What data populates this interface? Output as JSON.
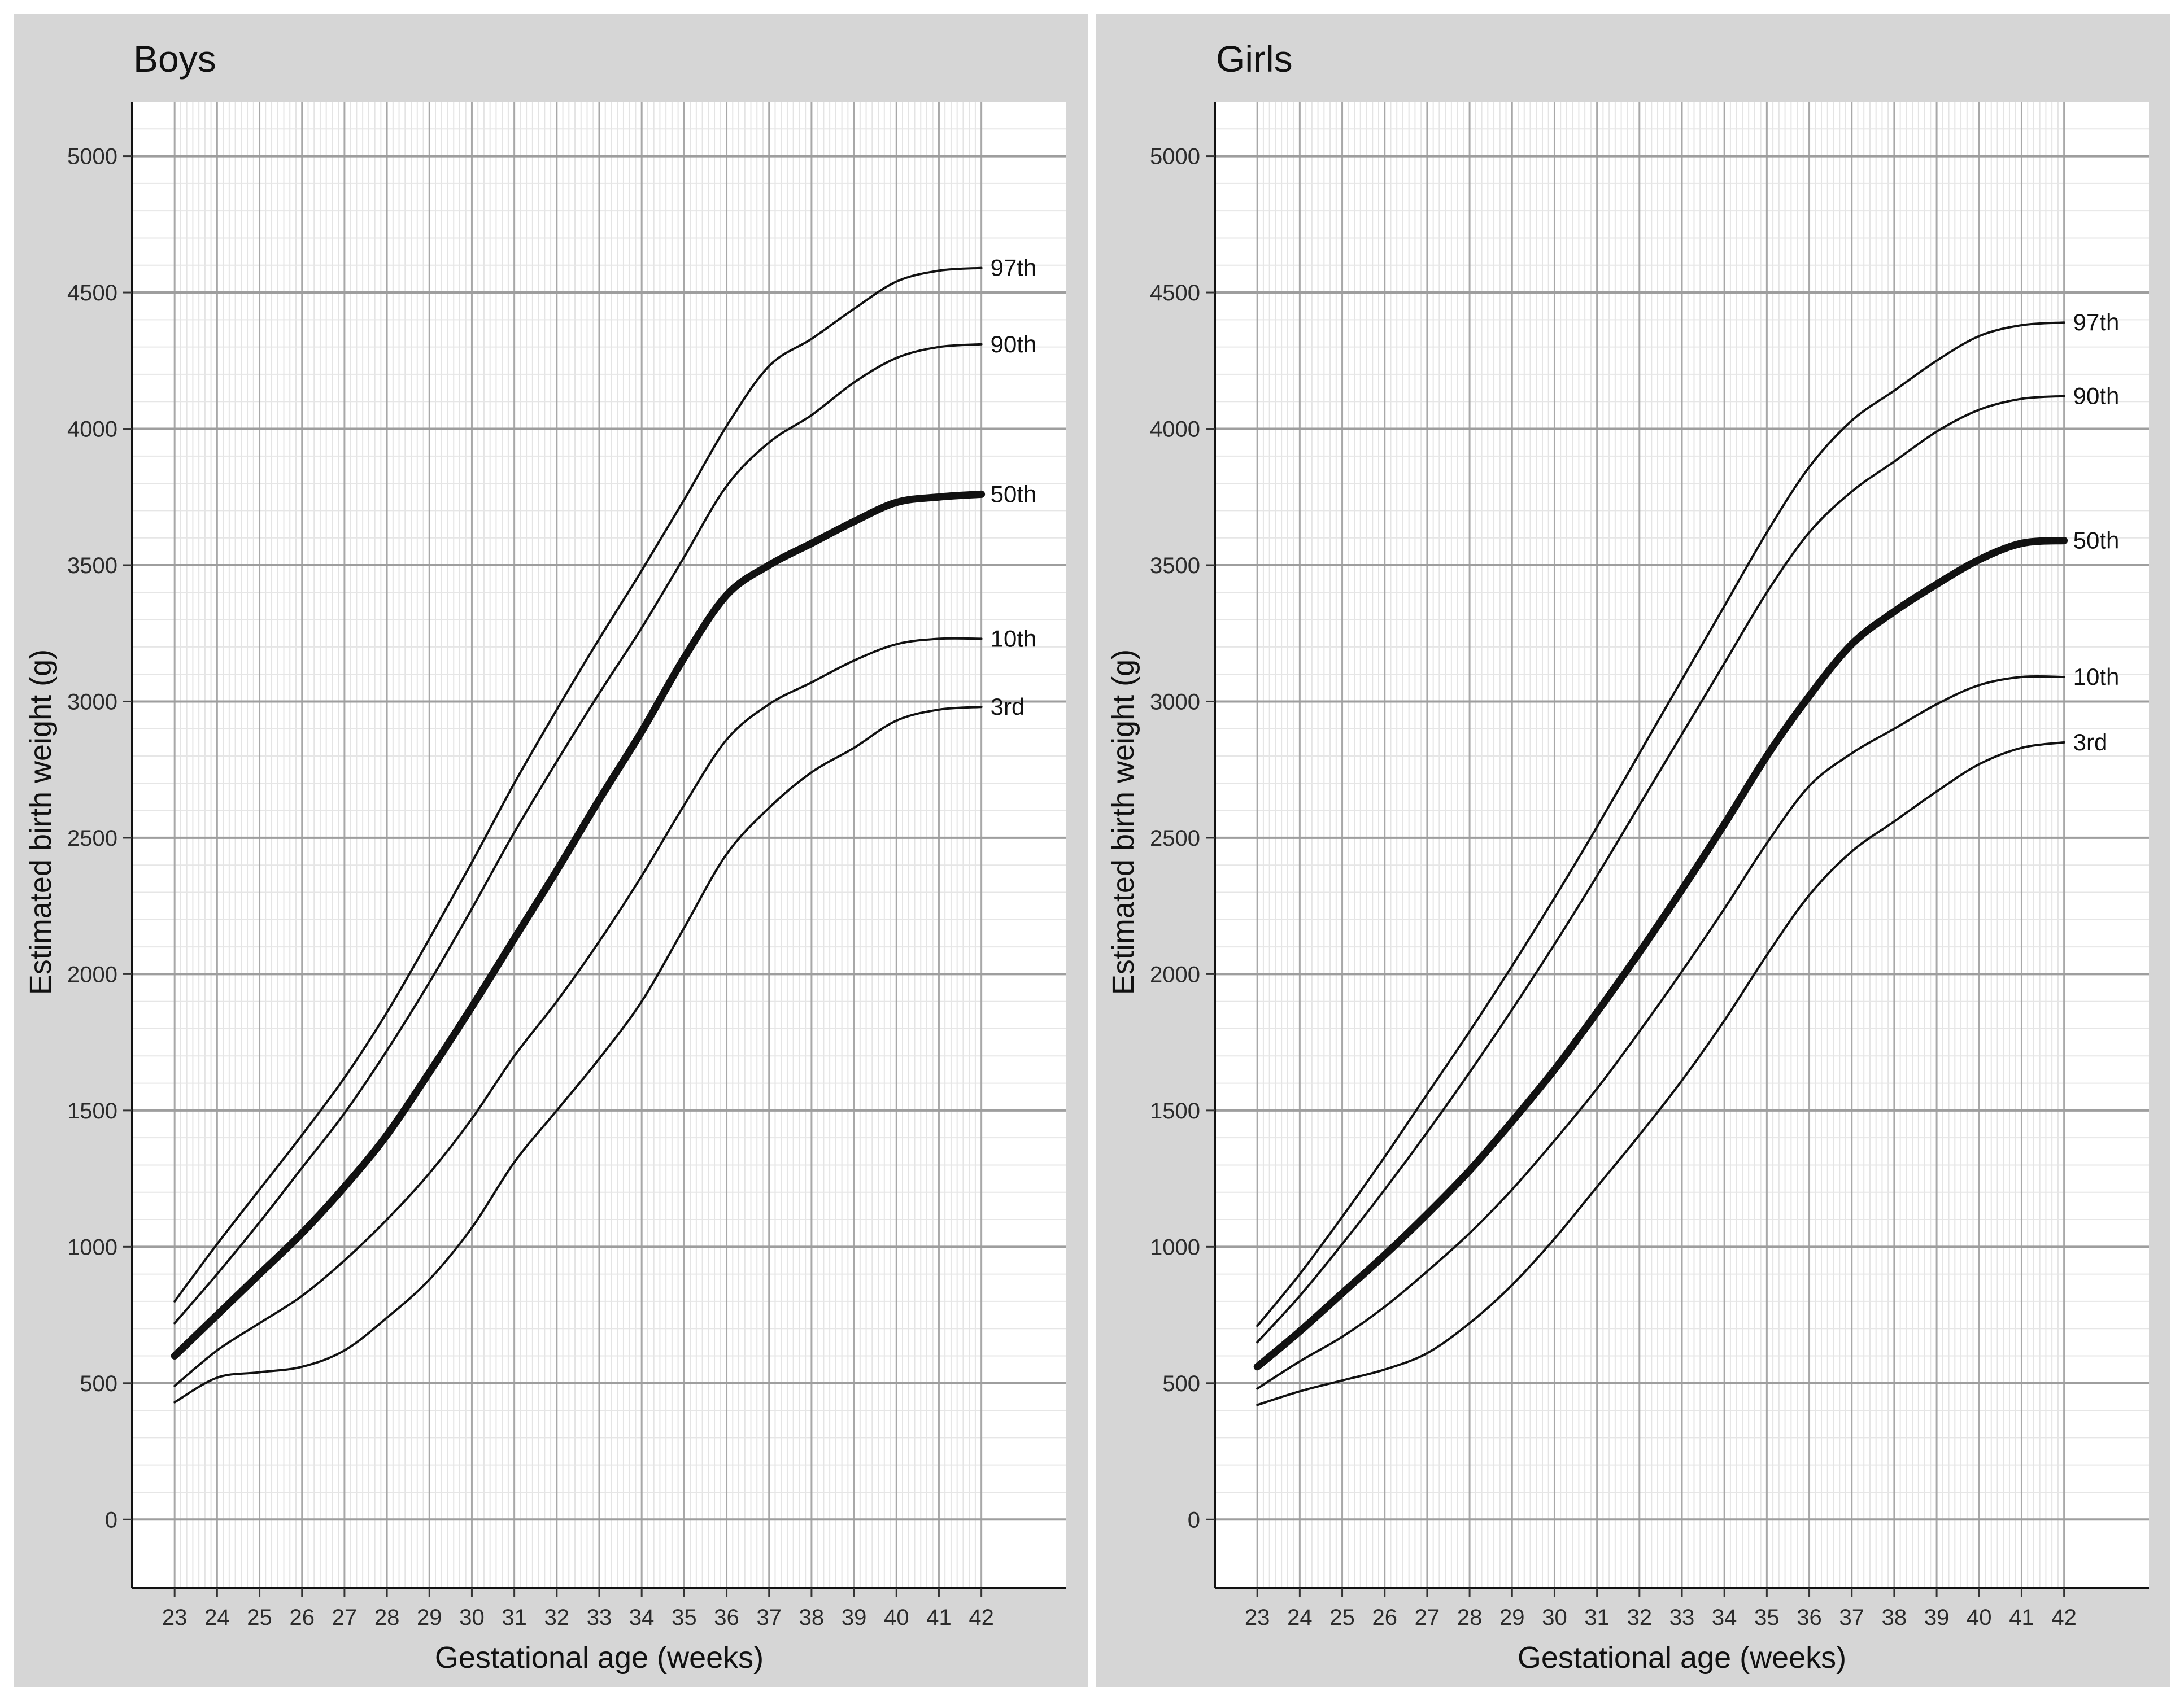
{
  "chart_data": [
    {
      "type": "line",
      "title": "Boys",
      "xlabel": "Gestational age (weeks)",
      "ylabel": "Estimated birth weight (g)",
      "x": [
        23,
        24,
        25,
        26,
        27,
        28,
        29,
        30,
        31,
        32,
        33,
        34,
        35,
        36,
        37,
        38,
        39,
        40,
        41,
        42
      ],
      "xlim": [
        22,
        44
      ],
      "ylim": [
        -250,
        5200
      ],
      "yticks": [
        0,
        500,
        1000,
        1500,
        2000,
        2500,
        3000,
        3500,
        4000,
        4500,
        5000
      ],
      "xticks": [
        23,
        24,
        25,
        26,
        27,
        28,
        29,
        30,
        31,
        32,
        33,
        34,
        35,
        36,
        37,
        38,
        39,
        40,
        41,
        42
      ],
      "grid": true,
      "legend": "none",
      "series": [
        {
          "name": "97th",
          "emphasis": false,
          "values": [
            800,
            1010,
            1210,
            1410,
            1620,
            1860,
            2130,
            2410,
            2700,
            2970,
            3230,
            3480,
            3740,
            4010,
            4230,
            4330,
            4440,
            4540,
            4580,
            4590
          ]
        },
        {
          "name": "90th",
          "emphasis": false,
          "values": [
            720,
            900,
            1090,
            1290,
            1490,
            1720,
            1970,
            2240,
            2520,
            2780,
            3030,
            3270,
            3530,
            3790,
            3950,
            4050,
            4170,
            4260,
            4300,
            4310
          ]
        },
        {
          "name": "50th",
          "emphasis": true,
          "values": [
            600,
            750,
            900,
            1050,
            1220,
            1410,
            1640,
            1880,
            2130,
            2380,
            2640,
            2890,
            3160,
            3390,
            3500,
            3580,
            3660,
            3730,
            3750,
            3760
          ]
        },
        {
          "name": "10th",
          "emphasis": false,
          "values": [
            490,
            620,
            720,
            820,
            950,
            1100,
            1270,
            1470,
            1700,
            1900,
            2120,
            2360,
            2620,
            2860,
            2990,
            3070,
            3150,
            3210,
            3230,
            3230
          ]
        },
        {
          "name": "3rd",
          "emphasis": false,
          "values": [
            430,
            520,
            540,
            560,
            620,
            740,
            880,
            1070,
            1310,
            1500,
            1690,
            1900,
            2170,
            2440,
            2610,
            2740,
            2830,
            2930,
            2970,
            2980
          ]
        }
      ]
    },
    {
      "type": "line",
      "title": "Girls",
      "xlabel": "Gestational age (weeks)",
      "ylabel": "Estimated birth weight (g)",
      "x": [
        23,
        24,
        25,
        26,
        27,
        28,
        29,
        30,
        31,
        32,
        33,
        34,
        35,
        36,
        37,
        38,
        39,
        40,
        41,
        42
      ],
      "xlim": [
        22,
        44
      ],
      "ylim": [
        -250,
        5200
      ],
      "yticks": [
        0,
        500,
        1000,
        1500,
        2000,
        2500,
        3000,
        3500,
        4000,
        4500,
        5000
      ],
      "xticks": [
        23,
        24,
        25,
        26,
        27,
        28,
        29,
        30,
        31,
        32,
        33,
        34,
        35,
        36,
        37,
        38,
        39,
        40,
        41,
        42
      ],
      "grid": true,
      "legend": "none",
      "series": [
        {
          "name": "97th",
          "emphasis": false,
          "values": [
            710,
            900,
            1110,
            1330,
            1560,
            1790,
            2030,
            2280,
            2540,
            2810,
            3080,
            3350,
            3620,
            3860,
            4030,
            4140,
            4250,
            4340,
            4380,
            4390
          ]
        },
        {
          "name": "90th",
          "emphasis": false,
          "values": [
            650,
            820,
            1010,
            1210,
            1420,
            1640,
            1870,
            2110,
            2360,
            2620,
            2880,
            3140,
            3400,
            3620,
            3770,
            3880,
            3990,
            4070,
            4110,
            4120
          ]
        },
        {
          "name": "50th",
          "emphasis": true,
          "values": [
            560,
            690,
            830,
            970,
            1120,
            1280,
            1460,
            1650,
            1860,
            2080,
            2310,
            2550,
            2800,
            3020,
            3210,
            3330,
            3430,
            3520,
            3580,
            3590
          ]
        },
        {
          "name": "10th",
          "emphasis": false,
          "values": [
            480,
            580,
            670,
            780,
            910,
            1050,
            1210,
            1390,
            1580,
            1790,
            2010,
            2240,
            2480,
            2690,
            2810,
            2900,
            2990,
            3060,
            3090,
            3090
          ]
        },
        {
          "name": "3rd",
          "emphasis": false,
          "values": [
            420,
            470,
            510,
            550,
            610,
            720,
            860,
            1030,
            1220,
            1410,
            1610,
            1830,
            2070,
            2290,
            2450,
            2560,
            2670,
            2770,
            2830,
            2850
          ]
        }
      ]
    }
  ]
}
